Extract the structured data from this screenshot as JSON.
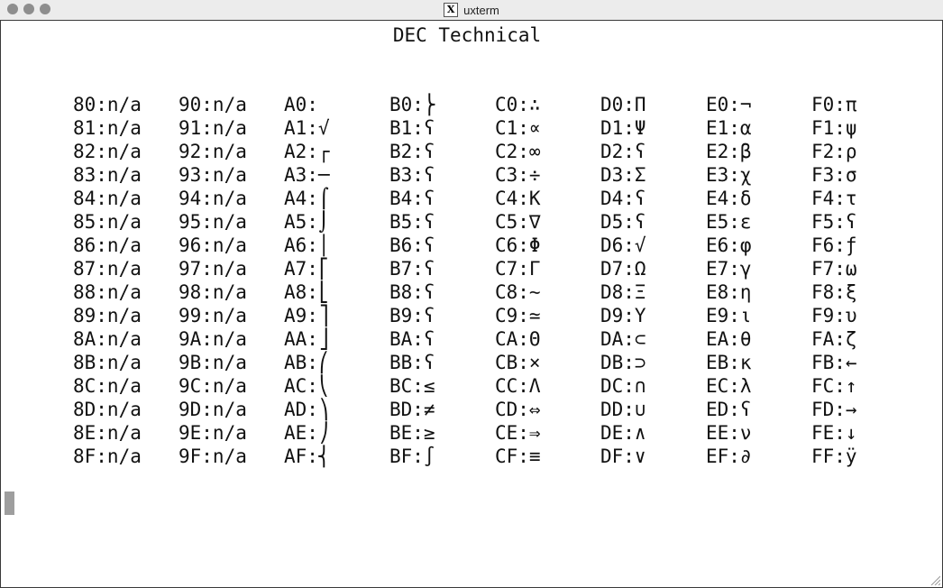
{
  "window": {
    "title": "uxterm",
    "app_icon": "x-window-icon"
  },
  "terminal": {
    "heading": "DEC Technical",
    "columns": [
      [
        "80:n/a",
        "81:n/a",
        "82:n/a",
        "83:n/a",
        "84:n/a",
        "85:n/a",
        "86:n/a",
        "87:n/a",
        "88:n/a",
        "89:n/a",
        "8A:n/a",
        "8B:n/a",
        "8C:n/a",
        "8D:n/a",
        "8E:n/a",
        "8F:n/a"
      ],
      [
        "90:n/a",
        "91:n/a",
        "92:n/a",
        "93:n/a",
        "94:n/a",
        "95:n/a",
        "96:n/a",
        "97:n/a",
        "98:n/a",
        "99:n/a",
        "9A:n/a",
        "9B:n/a",
        "9C:n/a",
        "9D:n/a",
        "9E:n/a",
        "9F:n/a"
      ],
      [
        "A0:",
        "A1:√",
        "A2:┌",
        "A3:─",
        "A4:⌠",
        "A5:⌡",
        "A6:│",
        "A7:⎡",
        "A8:⎣",
        "A9:⎤",
        "AA:⎦",
        "AB:⎛",
        "AC:⎝",
        "AD:⎞",
        "AE:⎠",
        "AF:⎨"
      ],
      [
        "B0:⎬",
        "B1:ʕ",
        "B2:ʕ",
        "B3:ʕ",
        "B4:ʕ",
        "B5:ʕ",
        "B6:ʕ",
        "B7:ʕ",
        "B8:ʕ",
        "B9:ʕ",
        "BA:ʕ",
        "BB:ʕ",
        "BC:≤",
        "BD:≠",
        "BE:≥",
        "BF:∫"
      ],
      [
        "C0:∴",
        "C1:∝",
        "C2:∞",
        "C3:÷",
        "C4:Κ",
        "C5:∇",
        "C6:Φ",
        "C7:Γ",
        "C8:∼",
        "C9:≃",
        "CA:Θ",
        "CB:×",
        "CC:Λ",
        "CD:⇔",
        "CE:⇒",
        "CF:≡"
      ],
      [
        "D0:Π",
        "D1:Ψ",
        "D2:ʕ",
        "D3:Σ",
        "D4:ʕ",
        "D5:ʕ",
        "D6:√",
        "D7:Ω",
        "D8:Ξ",
        "D9:Υ",
        "DA:⊂",
        "DB:⊃",
        "DC:∩",
        "DD:∪",
        "DE:∧",
        "DF:∨"
      ],
      [
        "E0:¬",
        "E1:α",
        "E2:β",
        "E3:χ",
        "E4:δ",
        "E5:ε",
        "E6:φ",
        "E7:γ",
        "E8:η",
        "E9:ι",
        "EA:θ",
        "EB:κ",
        "EC:λ",
        "ED:ʕ",
        "EE:ν",
        "EF:∂"
      ],
      [
        "F0:π",
        "F1:ψ",
        "F2:ρ",
        "F3:σ",
        "F4:τ",
        "F5:ʕ",
        "F6:ƒ",
        "F7:ω",
        "F8:ξ",
        "F9:υ",
        "FA:ζ",
        "FB:←",
        "FC:↑",
        "FD:→",
        "FE:↓",
        "FF:ÿ"
      ]
    ]
  },
  "colors": {
    "titlebar": "#ececec",
    "traffic_light": "#8e8e8e",
    "cursor": "#9e9e9e",
    "text": "#111111"
  }
}
